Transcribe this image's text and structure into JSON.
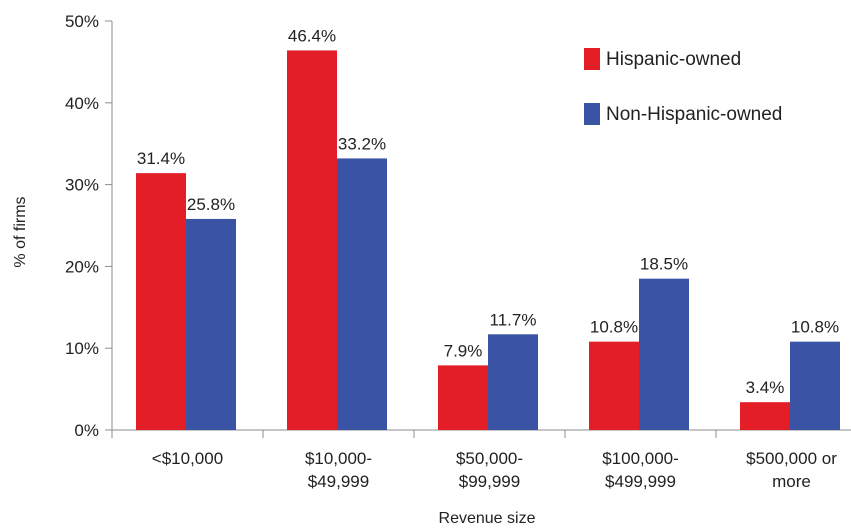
{
  "chart_data": {
    "type": "bar",
    "xlabel": "Revenue size",
    "ylabel": "% of firms",
    "ylim": [
      0,
      50
    ],
    "yticks": [
      0,
      10,
      20,
      30,
      40,
      50
    ],
    "ytick_labels": [
      "0%",
      "10%",
      "20%",
      "30%",
      "40%",
      "50%"
    ],
    "categories": [
      [
        "<$10,000"
      ],
      [
        "$10,000-",
        "$49,999"
      ],
      [
        "$50,000-",
        "$99,999"
      ],
      [
        "$100,000-",
        "$499,999"
      ],
      [
        "$500,000 or",
        "more"
      ]
    ],
    "series": [
      {
        "name": "Hispanic-owned",
        "color": "#e41e26",
        "values": [
          31.4,
          46.4,
          7.9,
          10.8,
          3.4
        ],
        "labels": [
          "31.4%",
          "46.4%",
          "7.9%",
          "10.8%",
          "3.4%"
        ]
      },
      {
        "name": "Non-Hispanic-owned",
        "color": "#3a53a4",
        "values": [
          25.8,
          33.2,
          11.7,
          18.5,
          10.8
        ],
        "labels": [
          "25.8%",
          "33.2%",
          "11.7%",
          "18.5%",
          "10.8%"
        ]
      }
    ],
    "legend": "top-right",
    "grid": false
  }
}
